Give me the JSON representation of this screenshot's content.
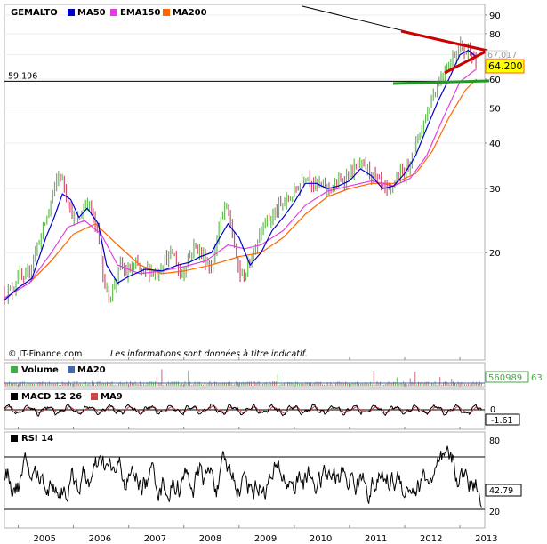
{
  "chart_data": [
    {
      "type": "line",
      "panel": "price",
      "symbol": "GEMALTO",
      "legend": [
        {
          "name": "GEMALTO",
          "color": "#000000"
        },
        {
          "name": "MA50",
          "color": "#0000cc"
        },
        {
          "name": "EMA150",
          "color": "#e040e0"
        },
        {
          "name": "MA200",
          "color": "#ff6600"
        }
      ],
      "scale": "log",
      "ylim": [
        12,
        92
      ],
      "y_ticks": [
        "90",
        "80",
        "70",
        "60",
        "50",
        "40",
        "30",
        "20"
      ],
      "x_ticks": [
        "2005",
        "2006",
        "2007",
        "2008",
        "2009",
        "2010",
        "2011",
        "2012",
        "2013"
      ],
      "xlim": [
        2004.75,
        2013.45
      ],
      "horizontal_level": {
        "label": "59.196",
        "value": 59.196
      },
      "last_price": {
        "label": "64.200",
        "value": 64.2
      },
      "hidden_price_label": "67.017",
      "footer": "© IT-Finance.com",
      "disclaimer": "Les informations sont données à titre indicatif.",
      "close": {
        "x": [
          2004.75,
          2004.9,
          2005.0,
          2005.1,
          2005.2,
          2005.3,
          2005.4,
          2005.5,
          2005.55,
          2005.65,
          2005.75,
          2005.85,
          2005.95,
          2006.05,
          2006.15,
          2006.25,
          2006.35,
          2006.45,
          2006.55,
          2006.65,
          2006.75,
          2006.85,
          2006.95,
          2007.05,
          2007.15,
          2007.25,
          2007.35,
          2007.5,
          2007.65,
          2007.8,
          2007.95,
          2008.05,
          2008.2,
          2008.35,
          2008.5,
          2008.6,
          2008.75,
          2008.85,
          2008.95,
          2009.05,
          2009.15,
          2009.3,
          2009.45,
          2009.6,
          2009.75,
          2009.9,
          2010.05,
          2010.2,
          2010.35,
          2010.5,
          2010.65,
          2010.8,
          2010.95,
          2011.1,
          2011.25,
          2011.4,
          2011.55,
          2011.7,
          2011.85,
          2012.0,
          2012.1,
          2012.2,
          2012.3,
          2012.4,
          2012.5,
          2012.6,
          2012.7,
          2012.8,
          2012.9,
          2013.0,
          2013.1,
          2013.2,
          2013.3
        ],
        "y": [
          15.5,
          15.8,
          17.5,
          16.5,
          17.8,
          20.0,
          22.0,
          24.5,
          26.0,
          30.0,
          33.0,
          30.0,
          26.0,
          24.0,
          25.5,
          28.0,
          25.0,
          22.5,
          16.5,
          15.0,
          16.5,
          18.5,
          17.5,
          18.0,
          18.5,
          17.5,
          18.0,
          17.5,
          19.0,
          20.0,
          17.0,
          19.0,
          21.0,
          19.5,
          18.0,
          22.0,
          27.0,
          24.0,
          19.0,
          17.0,
          18.0,
          21.0,
          24.5,
          25.0,
          27.0,
          28.0,
          30.0,
          33.0,
          31.0,
          30.5,
          30.0,
          31.0,
          32.5,
          34.0,
          35.0,
          33.0,
          31.0,
          29.0,
          32.0,
          33.5,
          36.0,
          40.0,
          44.0,
          48.0,
          54.0,
          58.0,
          63.0,
          66.0,
          70.0,
          75.0,
          71.0,
          73.0,
          64.2
        ]
      },
      "ma50": {
        "x": [
          2004.75,
          2005.0,
          2005.25,
          2005.5,
          2005.65,
          2005.8,
          2005.95,
          2006.1,
          2006.25,
          2006.45,
          2006.6,
          2006.8,
          2007.0,
          2007.3,
          2007.6,
          2007.9,
          2008.1,
          2008.3,
          2008.5,
          2008.65,
          2008.8,
          2009.0,
          2009.2,
          2009.4,
          2009.6,
          2009.8,
          2010.0,
          2010.2,
          2010.4,
          2010.6,
          2010.8,
          2011.0,
          2011.2,
          2011.4,
          2011.6,
          2011.8,
          2012.0,
          2012.2,
          2012.4,
          2012.6,
          2012.8,
          2013.0,
          2013.15,
          2013.3
        ],
        "y": [
          14.8,
          16.0,
          17.0,
          22.0,
          25.0,
          29.0,
          28.0,
          25.0,
          26.5,
          24.0,
          18.5,
          16.5,
          17.2,
          18.0,
          17.8,
          18.5,
          18.8,
          19.5,
          20.0,
          22.0,
          24.0,
          22.0,
          18.5,
          20.0,
          23.0,
          25.0,
          27.5,
          31.0,
          31.0,
          30.0,
          30.5,
          31.5,
          34.0,
          32.5,
          30.0,
          30.5,
          33.0,
          37.0,
          44.0,
          52.0,
          60.0,
          70.0,
          72.0,
          69.0
        ]
      },
      "ema150": {
        "x": [
          2004.75,
          2005.2,
          2005.6,
          2005.9,
          2006.2,
          2006.5,
          2006.8,
          2007.2,
          2007.6,
          2008.0,
          2008.4,
          2008.8,
          2009.1,
          2009.4,
          2009.8,
          2010.2,
          2010.6,
          2011.0,
          2011.4,
          2011.8,
          2012.1,
          2012.4,
          2012.7,
          2013.0,
          2013.3
        ],
        "y": [
          15.0,
          16.5,
          20.0,
          23.5,
          24.5,
          22.5,
          18.5,
          17.5,
          17.8,
          18.3,
          19.0,
          21.0,
          20.5,
          21.0,
          23.0,
          27.0,
          29.5,
          30.5,
          31.5,
          30.5,
          32.0,
          37.0,
          47.0,
          59.0,
          64.0
        ]
      },
      "ma200": {
        "x": [
          2005.2,
          2005.6,
          2006.0,
          2006.4,
          2006.8,
          2007.2,
          2007.6,
          2008.0,
          2008.5,
          2009.0,
          2009.4,
          2009.8,
          2010.2,
          2010.6,
          2011.0,
          2011.4,
          2011.8,
          2012.2,
          2012.5,
          2012.8,
          2013.1,
          2013.3
        ],
        "y": [
          16.5,
          19.0,
          22.5,
          24.0,
          21.0,
          18.5,
          17.5,
          17.8,
          18.5,
          19.5,
          20.0,
          22.0,
          25.5,
          28.5,
          30.0,
          31.0,
          31.0,
          33.0,
          38.0,
          47.0,
          56.0,
          60.0
        ]
      }
    },
    {
      "type": "bar",
      "panel": "volume",
      "legend": [
        {
          "name": "Volume",
          "color": "#44aa44"
        },
        {
          "name": "MA20",
          "color": "#4466aa"
        }
      ],
      "last_value": "560989",
      "cut_off_value": "63"
    },
    {
      "type": "line",
      "panel": "macd",
      "legend": [
        {
          "name": "MACD 12 26",
          "color": "#000000"
        },
        {
          "name": "MA9",
          "color": "#cc4444"
        }
      ],
      "y_ticks": [
        "0"
      ],
      "last_value": "-1.61"
    },
    {
      "type": "line",
      "panel": "rsi",
      "legend": [
        {
          "name": "RSI 14",
          "color": "#000000"
        }
      ],
      "ylim": [
        0,
        100
      ],
      "y_ticks": [
        "80",
        "20"
      ],
      "levels": [
        70,
        30
      ],
      "last_value": "42.79"
    }
  ]
}
